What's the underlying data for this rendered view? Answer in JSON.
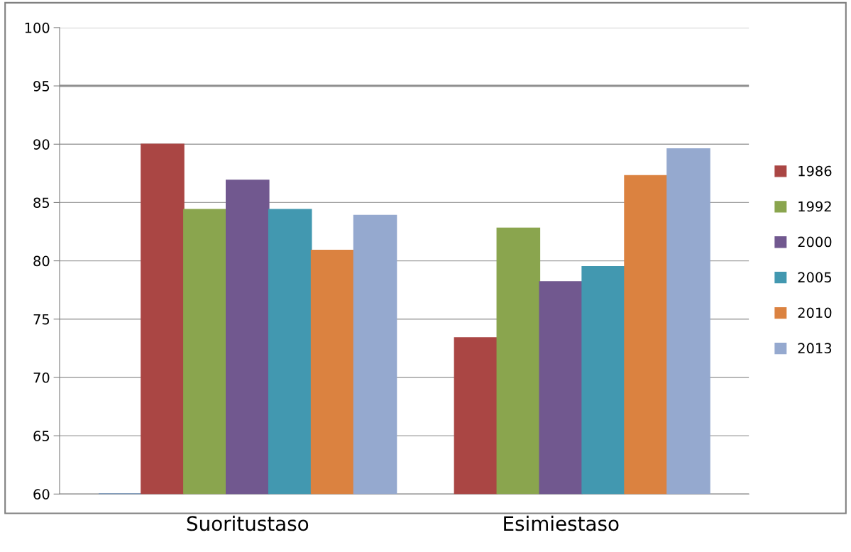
{
  "chart_data": {
    "type": "bar",
    "categories": [
      "Suoritustaso",
      "Esimiestaso"
    ],
    "series": [
      {
        "color": "#4f81bd",
        "values": [
          60,
          null
        ]
      },
      {
        "name": "1986",
        "color": "#aa4644",
        "values": [
          90.0,
          73.4
        ]
      },
      {
        "name": "1992",
        "color": "#8aa54e",
        "values": [
          84.4,
          82.8
        ]
      },
      {
        "name": "2000",
        "color": "#71588f",
        "values": [
          86.9,
          78.2
        ]
      },
      {
        "name": "2005",
        "color": "#4298b0",
        "values": [
          84.4,
          79.5
        ]
      },
      {
        "name": "2010",
        "color": "#db8240",
        "values": [
          80.9,
          87.3
        ]
      },
      {
        "name": "2013",
        "color": "#95a9cf",
        "values": [
          83.9,
          89.6
        ]
      }
    ],
    "ylim": [
      60,
      100
    ],
    "yticks": [
      60,
      65,
      70,
      75,
      80,
      85,
      90,
      95,
      100
    ],
    "ref_lines": [
      {
        "axis": "y",
        "value": 95,
        "color": "#808080"
      }
    ],
    "grid": "y",
    "legend": "right"
  }
}
